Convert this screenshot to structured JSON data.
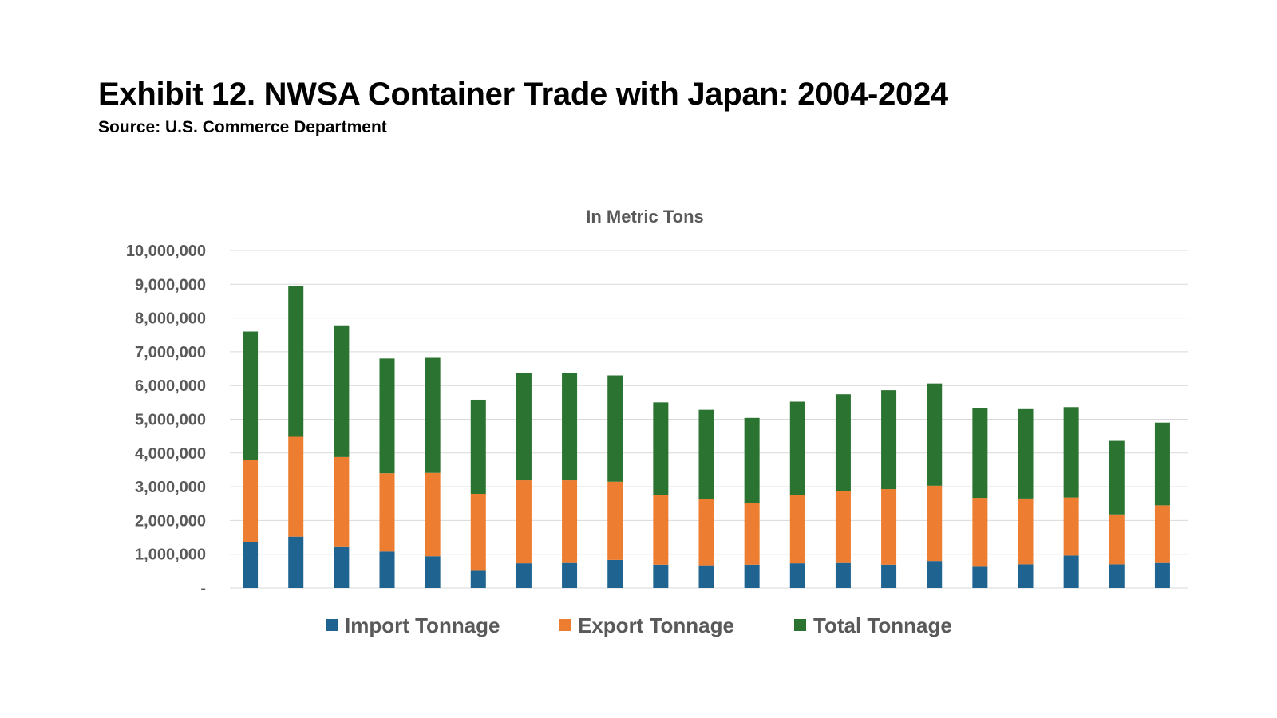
{
  "header": {
    "title": "Exhibit 12. NWSA Container Trade with Japan: 2004-2024",
    "source": "Source: U.S. Commerce Department"
  },
  "chart_data": {
    "type": "bar",
    "stacked": true,
    "title": "In Metric Tons",
    "xlabel": "",
    "ylabel": "",
    "ylim": [
      0,
      10000000
    ],
    "y_ticks": [
      0,
      1000000,
      2000000,
      3000000,
      4000000,
      5000000,
      6000000,
      7000000,
      8000000,
      9000000,
      10000000
    ],
    "y_tick_labels": [
      "-",
      "1,000,000",
      "2,000,000",
      "3,000,000",
      "4,000,000",
      "5,000,000",
      "6,000,000",
      "7,000,000",
      "8,000,000",
      "9,000,000",
      "10,000,000"
    ],
    "grid": true,
    "legend_position": "bottom",
    "series": [
      {
        "name": "Import Tonnage",
        "color": "#1f6391",
        "values": [
          1350000,
          1520000,
          1210000,
          1080000,
          940000,
          510000,
          730000,
          740000,
          830000,
          690000,
          670000,
          690000,
          730000,
          740000,
          690000,
          800000,
          630000,
          700000,
          960000,
          700000,
          740000
        ]
      },
      {
        "name": "Export Tonnage",
        "color": "#ed7d31",
        "values": [
          2450000,
          2960000,
          2670000,
          2320000,
          2470000,
          2280000,
          2460000,
          2450000,
          2320000,
          2060000,
          1970000,
          1830000,
          2030000,
          2130000,
          2240000,
          2230000,
          2040000,
          1950000,
          1720000,
          1480000,
          1710000
        ]
      },
      {
        "name": "Total Tonnage",
        "color": "#2a7330",
        "values": [
          3800000,
          4480000,
          3880000,
          3400000,
          3410000,
          2790000,
          3190000,
          3190000,
          3150000,
          2750000,
          2640000,
          2520000,
          2760000,
          2870000,
          2930000,
          3030000,
          2670000,
          2650000,
          2680000,
          2180000,
          2450000
        ]
      }
    ]
  }
}
